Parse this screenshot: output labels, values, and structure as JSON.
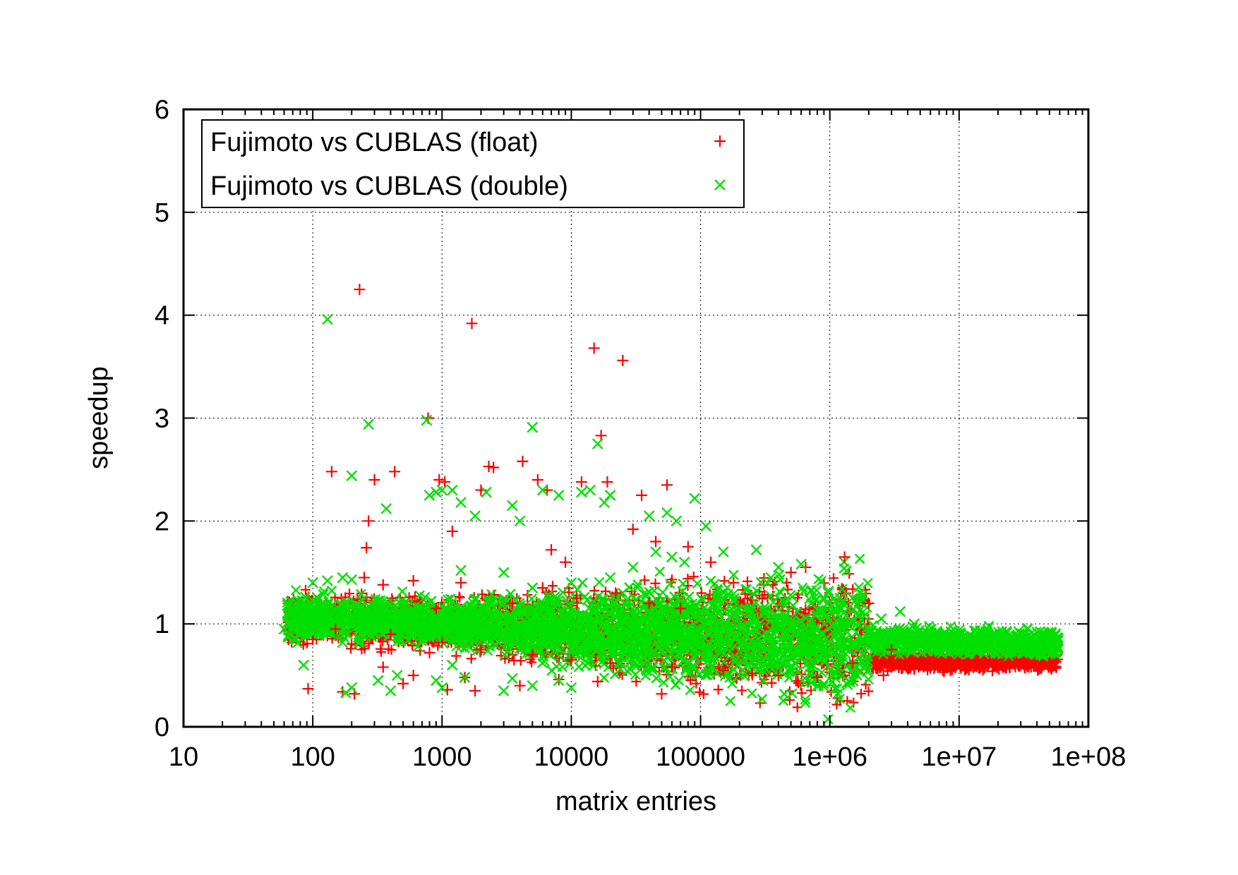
{
  "chart_data": {
    "type": "scatter",
    "title": "",
    "xlabel": "matrix entries",
    "ylabel": "speedup",
    "xscale": "log",
    "xlim": [
      10,
      100000000
    ],
    "ylim": [
      0,
      6
    ],
    "grid": true,
    "legend_position": "top-left",
    "x_ticks": [
      10,
      100,
      1000,
      10000,
      100000,
      1000000,
      10000000,
      100000000
    ],
    "x_tick_labels": [
      "10",
      "100",
      "1000",
      "10000",
      "100000",
      "1e+06",
      "1e+07",
      "1e+08"
    ],
    "y_ticks": [
      0,
      1,
      2,
      3,
      4,
      5,
      6
    ],
    "y_tick_labels": [
      "0",
      "1",
      "2",
      "3",
      "4",
      "5",
      "6"
    ],
    "series": [
      {
        "name": "Fujimoto vs CUBLAS (float)",
        "marker": "plus",
        "color": "#ff0000",
        "points": [
          [
            230,
            4.25
          ],
          [
            1700,
            3.92
          ],
          [
            15000,
            3.68
          ],
          [
            25000,
            3.56
          ],
          [
            17000,
            2.83
          ],
          [
            780,
            3.0
          ],
          [
            140,
            2.48
          ],
          [
            430,
            2.48
          ],
          [
            270,
            2.0
          ],
          [
            260,
            1.74
          ],
          [
            300,
            2.4
          ],
          [
            950,
            2.4
          ],
          [
            1050,
            2.38
          ],
          [
            2300,
            2.53
          ],
          [
            2500,
            2.52
          ],
          [
            4200,
            2.58
          ],
          [
            5500,
            2.4
          ],
          [
            6500,
            2.3
          ],
          [
            12000,
            2.38
          ],
          [
            19000,
            2.38
          ],
          [
            35000,
            2.25
          ],
          [
            55000,
            2.35
          ],
          [
            1200,
            1.9
          ],
          [
            2000,
            2.3
          ],
          [
            7000,
            1.72
          ],
          [
            9000,
            1.6
          ],
          [
            30000,
            1.92
          ],
          [
            45000,
            1.8
          ],
          [
            80000,
            1.75
          ],
          [
            1300000,
            1.65
          ],
          [
            650000,
            1.55
          ],
          [
            120000,
            1.6
          ],
          [
            350,
            0.58
          ],
          [
            500,
            0.42
          ],
          [
            600,
            0.5
          ],
          [
            92,
            0.37
          ],
          [
            170,
            0.34
          ],
          [
            210,
            0.32
          ],
          [
            800,
            0.72
          ],
          [
            1100,
            0.36
          ],
          [
            1500,
            0.48
          ],
          [
            1800,
            0.35
          ],
          [
            4000,
            0.4
          ],
          [
            8000,
            0.46
          ],
          [
            16000,
            0.44
          ],
          [
            50000,
            0.32
          ],
          [
            2600000,
            0.5
          ],
          [
            4500000,
            0.56
          ],
          [
            7500000,
            0.55
          ],
          [
            3500,
            1.2
          ],
          [
            6000,
            1.35
          ],
          [
            11000,
            1.25
          ],
          [
            22000,
            1.3
          ],
          [
            40000,
            1.2
          ],
          [
            70000,
            1.15
          ],
          [
            180000,
            1.4
          ],
          [
            300000,
            1.25
          ],
          [
            500000,
            1.5
          ],
          [
            250,
            1.45
          ],
          [
            350,
            1.38
          ],
          [
            600,
            1.42
          ],
          [
            1400,
            1.4
          ],
          [
            900,
            1.15
          ],
          [
            100,
            0.85
          ],
          [
            150,
            0.95
          ],
          [
            400,
            0.9
          ],
          [
            1000,
            0.82
          ],
          [
            2000,
            0.75
          ],
          [
            5000,
            0.7
          ],
          [
            10000,
            0.65
          ],
          [
            20000,
            0.62
          ],
          [
            60000,
            0.58
          ],
          [
            150000,
            0.55
          ],
          [
            250000,
            0.52
          ],
          [
            400000,
            0.5
          ],
          [
            800000,
            0.48
          ],
          [
            1500000,
            0.62
          ],
          [
            2000000,
            1.2
          ],
          [
            3000000,
            0.75
          ]
        ]
      },
      {
        "name": "Fujimoto vs CUBLAS (double)",
        "marker": "cross",
        "color": "#00e000",
        "points": [
          [
            130,
            3.96
          ],
          [
            760,
            2.98
          ],
          [
            270,
            2.94
          ],
          [
            5000,
            2.91
          ],
          [
            16000,
            2.75
          ],
          [
            200,
            2.44
          ],
          [
            370,
            2.12
          ],
          [
            800,
            2.25
          ],
          [
            900,
            2.28
          ],
          [
            1000,
            2.3
          ],
          [
            1200,
            2.3
          ],
          [
            1400,
            2.18
          ],
          [
            1800,
            2.05
          ],
          [
            2200,
            2.28
          ],
          [
            3500,
            2.15
          ],
          [
            4000,
            2.0
          ],
          [
            6000,
            2.3
          ],
          [
            8000,
            2.25
          ],
          [
            12000,
            2.28
          ],
          [
            14000,
            2.3
          ],
          [
            18000,
            2.18
          ],
          [
            20000,
            2.25
          ],
          [
            40000,
            2.05
          ],
          [
            55000,
            2.08
          ],
          [
            65000,
            2.0
          ],
          [
            90000,
            2.22
          ],
          [
            110000,
            1.95
          ],
          [
            85,
            0.6
          ],
          [
            100,
            0.9
          ],
          [
            170,
            0.82
          ],
          [
            180,
            0.33
          ],
          [
            200,
            0.38
          ],
          [
            320,
            0.45
          ],
          [
            400,
            0.35
          ],
          [
            450,
            0.5
          ],
          [
            650,
            0.78
          ],
          [
            900,
            0.45
          ],
          [
            1000,
            0.38
          ],
          [
            1200,
            0.6
          ],
          [
            1500,
            0.48
          ],
          [
            3000,
            0.35
          ],
          [
            3500,
            0.47
          ],
          [
            5000,
            0.4
          ],
          [
            8000,
            0.45
          ],
          [
            10000,
            0.38
          ],
          [
            100,
            1.4
          ],
          [
            130,
            1.42
          ],
          [
            170,
            1.45
          ],
          [
            200,
            1.43
          ],
          [
            60,
            0.95
          ],
          [
            1400,
            1.52
          ],
          [
            3000,
            1.5
          ],
          [
            5000,
            1.35
          ],
          [
            10000,
            1.4
          ],
          [
            20000,
            1.45
          ],
          [
            30000,
            1.55
          ],
          [
            45000,
            1.7
          ],
          [
            60000,
            1.65
          ],
          [
            75000,
            1.6
          ],
          [
            150000,
            1.7
          ],
          [
            270000,
            1.72
          ],
          [
            400000,
            1.55
          ],
          [
            600000,
            1.58
          ],
          [
            350000,
            1.45
          ],
          [
            1200000,
            1.25
          ],
          [
            1500000,
            1.25
          ],
          [
            2500000,
            1.05
          ],
          [
            3500000,
            1.12
          ],
          [
            4500000,
            1.0
          ],
          [
            6000000,
            0.88
          ],
          [
            12000000,
            0.82
          ],
          [
            20000000,
            0.8
          ],
          [
            30000000,
            0.8
          ],
          [
            45000000,
            0.8
          ],
          [
            58000000,
            0.78
          ]
        ]
      }
    ]
  }
}
